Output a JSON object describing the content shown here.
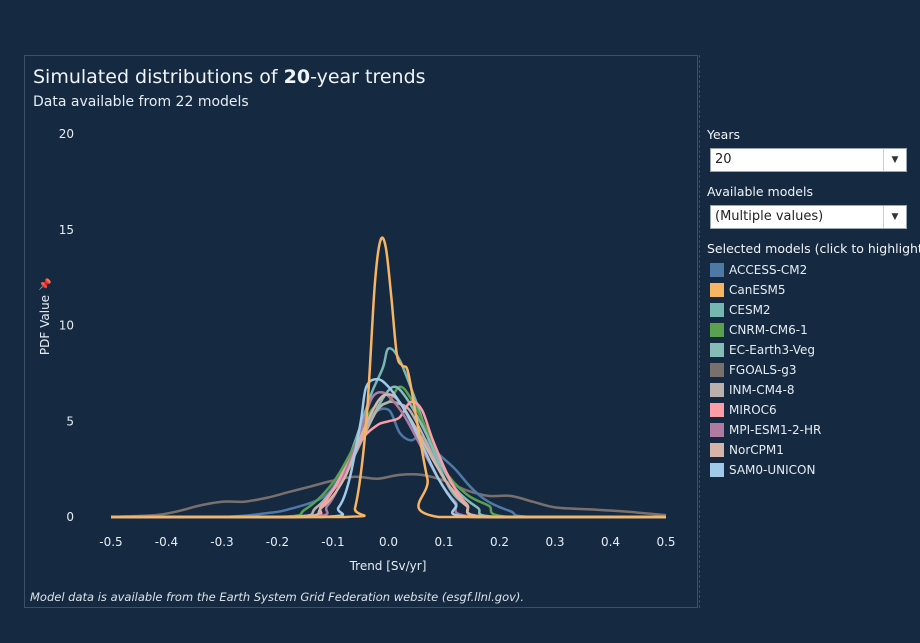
{
  "header": {
    "title_prefix": "Simulated distributions of ",
    "title_bold": "20",
    "title_suffix": "-year trends",
    "subtitle": "Data available from 22 models"
  },
  "footer": "Model data is available from the Earth System Grid Federation website (esgf.llnl.gov).",
  "filters": {
    "years_label": "Years",
    "years_value": "20",
    "models_label": "Available models",
    "models_value": "(Multiple values)",
    "selected_label": "Selected models (click to highlight)"
  },
  "chart_data": {
    "type": "line",
    "xlabel": "Trend [Sv/yr]",
    "ylabel": "PDF Value",
    "xlim": [
      -0.5,
      0.5
    ],
    "ylim": [
      0,
      20
    ],
    "xticks": [
      "-0.5",
      "-0.4",
      "-0.3",
      "-0.2",
      "-0.1",
      "0.0",
      "0.1",
      "0.2",
      "0.3",
      "0.4",
      "0.5"
    ],
    "yticks": [
      "0",
      "5",
      "10",
      "15",
      "20"
    ],
    "legend_position": "right",
    "series": [
      {
        "name": "ACCESS-CM2",
        "color": "#4e79a7",
        "x": [
          -0.5,
          -0.3,
          -0.22,
          -0.18,
          -0.12,
          -0.09,
          -0.06,
          -0.03,
          0.0,
          0.02,
          0.04,
          0.06,
          0.09,
          0.12,
          0.15,
          0.18,
          0.22,
          0.26,
          0.5
        ],
        "y": [
          0,
          0,
          0.2,
          0.4,
          1.0,
          2.0,
          3.7,
          5.3,
          5.6,
          4.4,
          4.0,
          4.2,
          3.3,
          2.5,
          1.5,
          0.8,
          0.3,
          0,
          0
        ]
      },
      {
        "name": "CanESM5",
        "color": "#f7b463",
        "x": [
          -0.5,
          -0.08,
          -0.06,
          -0.04,
          -0.025,
          -0.015,
          -0.005,
          0.005,
          0.015,
          0.025,
          0.035,
          0.05,
          0.07,
          0.09,
          0.5
        ],
        "y": [
          0,
          0,
          0.5,
          5.0,
          12.0,
          14.4,
          14.1,
          11.5,
          8.5,
          7.9,
          7.6,
          5.2,
          2.0,
          0,
          0
        ]
      },
      {
        "name": "CESM2",
        "color": "#76b7b2",
        "x": [
          -0.5,
          -0.16,
          -0.12,
          -0.08,
          -0.05,
          -0.03,
          -0.01,
          0.0,
          0.02,
          0.05,
          0.08,
          0.11,
          0.14,
          0.18,
          0.5
        ],
        "y": [
          0,
          0,
          0.6,
          2.5,
          4.8,
          6.5,
          7.8,
          8.8,
          8.2,
          6.0,
          3.5,
          1.5,
          0.6,
          0,
          0
        ]
      },
      {
        "name": "CNRM-CM6-1",
        "color": "#59a14f",
        "x": [
          -0.5,
          -0.2,
          -0.15,
          -0.1,
          -0.06,
          -0.03,
          0.0,
          0.02,
          0.04,
          0.07,
          0.1,
          0.14,
          0.18,
          0.22,
          0.5
        ],
        "y": [
          0,
          0,
          0.4,
          1.8,
          3.8,
          5.6,
          6.0,
          6.8,
          6.2,
          4.5,
          2.5,
          1.2,
          0.6,
          0,
          0
        ]
      },
      {
        "name": "EC-Earth3-Veg",
        "color": "#86bcb6",
        "x": [
          -0.5,
          -0.18,
          -0.13,
          -0.08,
          -0.04,
          -0.01,
          0.01,
          0.03,
          0.06,
          0.09,
          0.12,
          0.16,
          0.2,
          0.5
        ],
        "y": [
          0,
          0,
          0.5,
          2.3,
          4.6,
          6.2,
          6.8,
          6.3,
          4.8,
          3.0,
          1.5,
          0.5,
          0,
          0
        ]
      },
      {
        "name": "FGOALS-g3",
        "color": "#79706e",
        "x": [
          -0.5,
          -0.42,
          -0.38,
          -0.34,
          -0.3,
          -0.26,
          -0.22,
          -0.18,
          -0.14,
          -0.1,
          -0.06,
          -0.02,
          0.02,
          0.06,
          0.1,
          0.14,
          0.18,
          0.22,
          0.26,
          0.3,
          0.36,
          0.42,
          0.5
        ],
        "y": [
          0,
          0.1,
          0.3,
          0.6,
          0.8,
          0.8,
          1.0,
          1.3,
          1.6,
          1.9,
          2.1,
          2.0,
          2.2,
          2.2,
          1.9,
          1.4,
          1.1,
          1.1,
          0.8,
          0.5,
          0.4,
          0.3,
          0.1
        ]
      },
      {
        "name": "INM-CM4-8",
        "color": "#bab0ac",
        "x": [
          -0.5,
          -0.18,
          -0.13,
          -0.08,
          -0.04,
          -0.02,
          0.0,
          0.02,
          0.04,
          0.07,
          0.1,
          0.14,
          0.18,
          0.5
        ],
        "y": [
          0,
          0,
          0.5,
          2.2,
          4.5,
          5.6,
          6.0,
          5.9,
          5.5,
          3.8,
          2.0,
          0.7,
          0,
          0
        ]
      },
      {
        "name": "MIROC6",
        "color": "#ff9da7",
        "x": [
          -0.5,
          -0.16,
          -0.12,
          -0.08,
          -0.05,
          -0.02,
          0.0,
          0.02,
          0.04,
          0.06,
          0.08,
          0.11,
          0.14,
          0.18,
          0.5
        ],
        "y": [
          0,
          0,
          0.6,
          2.4,
          4.0,
          4.8,
          5.0,
          5.2,
          6.0,
          5.6,
          4.0,
          2.0,
          0.7,
          0,
          0
        ]
      },
      {
        "name": "MPI-ESM1-2-HR",
        "color": "#b07aa1",
        "x": [
          -0.5,
          -0.15,
          -0.11,
          -0.08,
          -0.05,
          -0.03,
          -0.01,
          0.01,
          0.03,
          0.06,
          0.09,
          0.12,
          0.16,
          0.5
        ],
        "y": [
          0,
          0,
          0.6,
          2.2,
          4.5,
          6.2,
          6.5,
          6.0,
          5.2,
          3.6,
          2.0,
          0.8,
          0,
          0
        ]
      },
      {
        "name": "NorCPM1",
        "color": "#d7b5a6",
        "x": [
          -0.5,
          -0.17,
          -0.12,
          -0.08,
          -0.05,
          -0.02,
          0.0,
          0.02,
          0.05,
          0.08,
          0.11,
          0.14,
          0.18,
          0.5
        ],
        "y": [
          0,
          0,
          0.5,
          2.0,
          4.2,
          6.0,
          6.4,
          6.0,
          4.6,
          3.0,
          1.6,
          0.6,
          0,
          0
        ]
      },
      {
        "name": "SAM0-UNICON",
        "color": "#a0cbe8",
        "x": [
          -0.5,
          -0.12,
          -0.09,
          -0.07,
          -0.05,
          -0.04,
          -0.02,
          0.0,
          0.02,
          0.04,
          0.06,
          0.09,
          0.12,
          0.15,
          0.5
        ],
        "y": [
          0,
          0,
          0.5,
          2.0,
          5.0,
          6.8,
          7.2,
          6.8,
          6.0,
          5.0,
          3.8,
          2.0,
          0.7,
          0,
          0
        ]
      }
    ]
  }
}
